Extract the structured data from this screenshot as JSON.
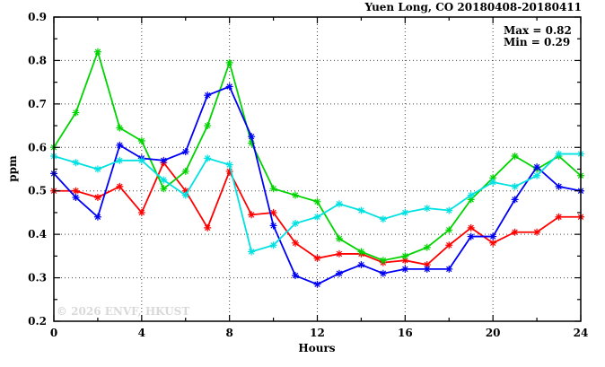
{
  "title": "Yuen Long, CO 20180408-20180411",
  "annotation": {
    "max": "Max = 0.82",
    "min": "Min = 0.29"
  },
  "watermark": "© 2026 ENVF, HKUST",
  "chart_data": {
    "type": "line",
    "title": "Yuen Long, CO 20180408-20180411",
    "xlabel": "Hours",
    "ylabel": "ppm",
    "xlim": [
      0,
      24
    ],
    "ylim": [
      0.2,
      0.9
    ],
    "x_ticks": [
      0,
      4,
      8,
      12,
      16,
      20,
      24
    ],
    "x_minor_ticks": [
      2,
      6,
      10,
      14,
      18,
      22
    ],
    "y_ticks": [
      0.2,
      0.3,
      0.4,
      0.5,
      0.6,
      0.7,
      0.8,
      0.9
    ],
    "y_minor_ticks": [
      0.25,
      0.35,
      0.45,
      0.55,
      0.65,
      0.75,
      0.85
    ],
    "grid": "dotted-at-major-ticks",
    "legend": "none",
    "marker": "asterisk",
    "max_value": 0.82,
    "min_value": 0.29,
    "x": [
      0,
      1,
      2,
      3,
      4,
      5,
      6,
      7,
      8,
      9,
      10,
      11,
      12,
      13,
      14,
      15,
      16,
      17,
      18,
      19,
      20,
      21,
      22,
      23,
      24
    ],
    "series": [
      {
        "name": "series-red",
        "color": "#ff0000",
        "values": [
          0.5,
          0.5,
          0.485,
          0.51,
          0.45,
          0.565,
          0.5,
          0.415,
          0.545,
          0.445,
          0.45,
          0.38,
          0.345,
          0.355,
          0.355,
          0.335,
          0.34,
          0.33,
          0.375,
          0.415,
          0.38,
          0.405,
          0.405,
          0.44,
          0.44
        ]
      },
      {
        "name": "series-green",
        "color": "#00d400",
        "values": [
          0.6,
          0.68,
          0.82,
          0.645,
          0.615,
          0.505,
          0.545,
          0.65,
          0.795,
          0.61,
          0.505,
          0.49,
          0.475,
          0.39,
          0.36,
          0.34,
          0.35,
          0.37,
          0.41,
          0.48,
          0.53,
          0.58,
          0.55,
          0.58,
          0.535
        ]
      },
      {
        "name": "series-blue",
        "color": "#0000f5",
        "values": [
          0.54,
          0.485,
          0.44,
          0.605,
          0.575,
          0.57,
          0.59,
          0.72,
          0.74,
          0.625,
          0.42,
          0.305,
          0.285,
          0.31,
          0.33,
          0.31,
          0.32,
          0.32,
          0.32,
          0.395,
          0.395,
          0.48,
          0.555,
          0.51,
          0.5
        ]
      },
      {
        "name": "series-cyan",
        "color": "#00e1e1",
        "values": [
          0.58,
          0.565,
          0.55,
          0.57,
          0.57,
          0.525,
          0.49,
          0.575,
          0.56,
          0.36,
          0.375,
          0.425,
          0.44,
          0.47,
          0.455,
          0.435,
          0.45,
          0.46,
          0.455,
          0.49,
          0.52,
          0.51,
          0.535,
          0.585,
          0.585
        ]
      }
    ]
  },
  "style": {
    "grid_color": "#444444",
    "border_color": "#000000",
    "background": "#ffffff"
  }
}
